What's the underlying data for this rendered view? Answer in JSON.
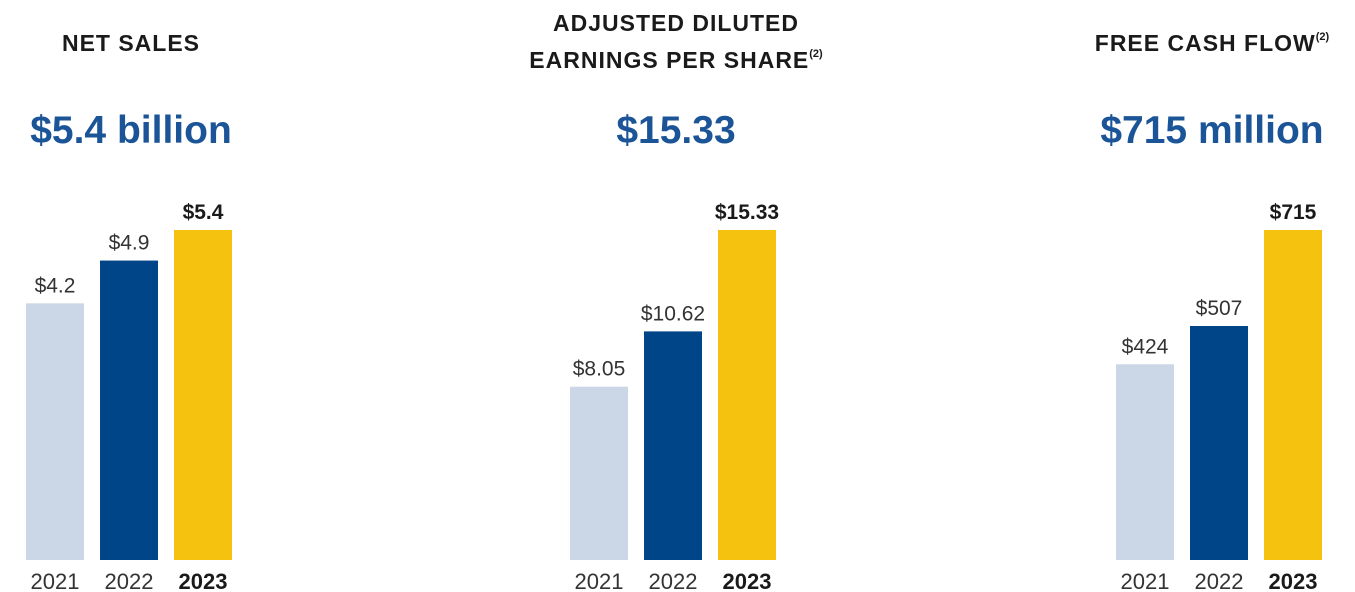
{
  "colors": {
    "year_2021": "#cbd6e6",
    "year_2022": "#004587",
    "year_2023": "#f5c20f",
    "headline": "#1c5597"
  },
  "chart_data": [
    {
      "type": "bar",
      "title": "NET SALES",
      "footnote": "",
      "headline": "$5.4 billion",
      "categories": [
        "2021",
        "2022",
        "2023"
      ],
      "values": [
        4.2,
        4.9,
        5.4
      ],
      "value_labels": [
        "$4.2",
        "$4.9",
        "$5.4"
      ],
      "highlight": "2023"
    },
    {
      "type": "bar",
      "title": "ADJUSTED DILUTED EARNINGS PER SHARE",
      "title_line1": "ADJUSTED DILUTED",
      "title_line2": "EARNINGS PER SHARE",
      "footnote": "(2)",
      "headline": "$15.33",
      "categories": [
        "2021",
        "2022",
        "2023"
      ],
      "values": [
        8.05,
        10.62,
        15.33
      ],
      "value_labels": [
        "$8.05",
        "$10.62",
        "$15.33"
      ],
      "highlight": "2023"
    },
    {
      "type": "bar",
      "title": "FREE CASH FLOW",
      "footnote": "(2)",
      "headline": "$715 million",
      "categories": [
        "2021",
        "2022",
        "2023"
      ],
      "values": [
        424,
        507,
        715
      ],
      "value_labels": [
        "$424",
        "$507",
        "$715"
      ],
      "highlight": "2023"
    }
  ]
}
